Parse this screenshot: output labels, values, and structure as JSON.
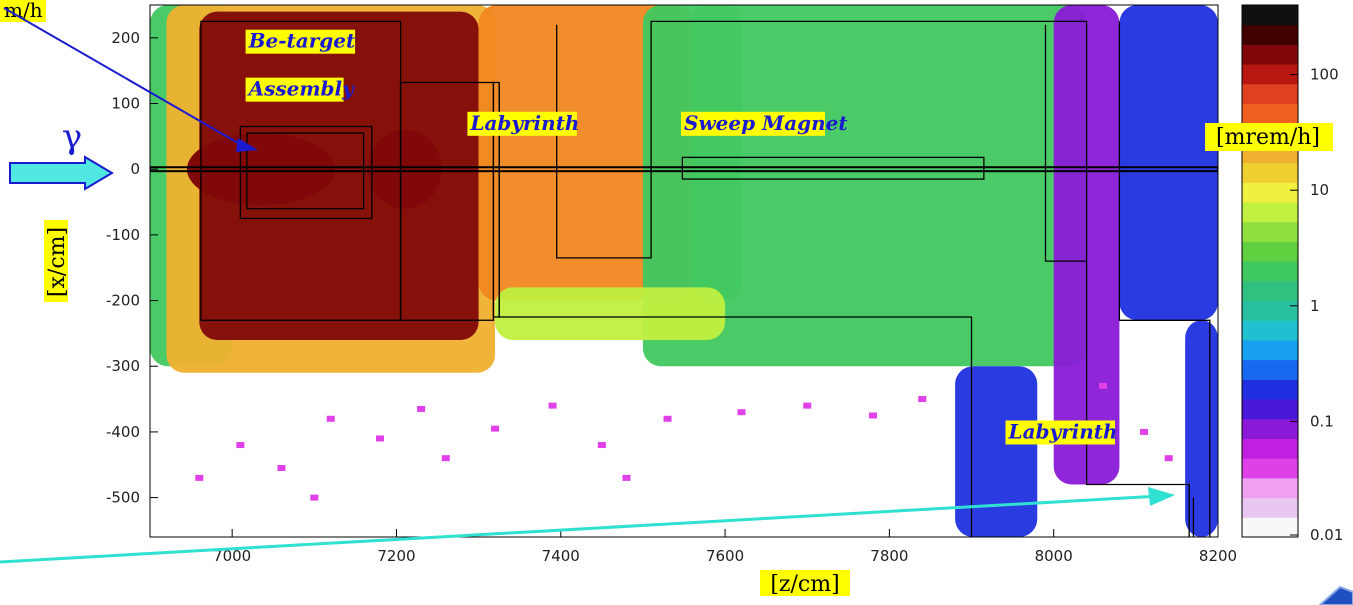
{
  "chart_data": {
    "type": "heatmap",
    "title": "",
    "xlabel": "[z/cm]",
    "ylabel": "[x/cm]",
    "xlim": [
      6900,
      8200
    ],
    "ylim": [
      -560,
      250
    ],
    "x_ticks": [
      7000,
      7200,
      7400,
      7600,
      7800,
      8000,
      8200
    ],
    "y_ticks": [
      200,
      100,
      0,
      -100,
      -200,
      -300,
      -400,
      -500
    ],
    "colorbar": {
      "label": "[mrem/h]",
      "scale": "log",
      "range": [
        0.01,
        400
      ],
      "ticks": [
        {
          "value": 100,
          "label": "100"
        },
        {
          "value": 10,
          "label": "10"
        },
        {
          "value": 1,
          "label": "1"
        },
        {
          "value": 0.1,
          "label": "0.1"
        },
        {
          "value": 0.01,
          "label": "0.01"
        }
      ],
      "colors": [
        "#f8f8f8",
        "#e8c8f0",
        "#f0a0f0",
        "#e040e8",
        "#c020e0",
        "#8a1ad8",
        "#4a18d8",
        "#2030e0",
        "#1868f0",
        "#18a0f0",
        "#20c0d0",
        "#28c0a0",
        "#30c080",
        "#40c860",
        "#60d040",
        "#90e040",
        "#c0f040",
        "#f0f040",
        "#f0d030",
        "#f0b030",
        "#f08820",
        "#f06020",
        "#e04020",
        "#b81810",
        "#800808",
        "#400000",
        "#101010"
      ]
    },
    "zones": [
      {
        "z": [
          6900,
          7000
        ],
        "x": [
          -300,
          250
        ],
        "dose": 2
      },
      {
        "z": [
          6920,
          7320
        ],
        "x": [
          -310,
          250
        ],
        "dose": 20
      },
      {
        "z": [
          6960,
          7300
        ],
        "x": [
          -260,
          240
        ],
        "dose": 150
      },
      {
        "z": [
          7300,
          7560
        ],
        "x": [
          -200,
          250
        ],
        "dose": 30
      },
      {
        "z": [
          7560,
          7620
        ],
        "x": [
          -200,
          250
        ],
        "dose": 3
      },
      {
        "z": [
          7500,
          8040
        ],
        "x": [
          -300,
          250
        ],
        "dose": 2
      },
      {
        "z": [
          7320,
          7600
        ],
        "x": [
          -260,
          -180
        ],
        "dose": 8
      },
      {
        "z": [
          7880,
          7980
        ],
        "x": [
          -560,
          -300
        ],
        "dose": 0.2
      },
      {
        "z": [
          8000,
          8080
        ],
        "x": [
          -480,
          250
        ],
        "dose": 0.08
      },
      {
        "z": [
          8080,
          8200
        ],
        "x": [
          -230,
          250
        ],
        "dose": 0.15
      },
      {
        "z": [
          8160,
          8200
        ],
        "x": [
          -560,
          -230
        ],
        "dose": 0.15
      }
    ],
    "hotspots": [
      {
        "z": 7070,
        "x": 0,
        "rz": 55,
        "rx": 14,
        "dose": 400
      },
      {
        "z": 7225,
        "x": 0,
        "rz": 22,
        "rx": 28,
        "dose": 400
      },
      {
        "z": 7035,
        "x": 0,
        "rz": 90,
        "rx": 55,
        "dose": 200
      },
      {
        "z": 7210,
        "x": 0,
        "rz": 45,
        "rx": 60,
        "dose": 200
      }
    ],
    "scatter_hits": [
      {
        "z": 7010,
        "x": -420
      },
      {
        "z": 7060,
        "x": -455
      },
      {
        "z": 7120,
        "x": -380
      },
      {
        "z": 7180,
        "x": -410
      },
      {
        "z": 7230,
        "x": -365
      },
      {
        "z": 7320,
        "x": -395
      },
      {
        "z": 7390,
        "x": -360
      },
      {
        "z": 7450,
        "x": -420
      },
      {
        "z": 7530,
        "x": -380
      },
      {
        "z": 7620,
        "x": -370
      },
      {
        "z": 7700,
        "x": -360
      },
      {
        "z": 7780,
        "x": -375
      },
      {
        "z": 7840,
        "x": -350
      },
      {
        "z": 6960,
        "x": -470
      },
      {
        "z": 7100,
        "x": -500
      },
      {
        "z": 7260,
        "x": -440
      },
      {
        "z": 7480,
        "x": -470
      },
      {
        "z": 8110,
        "x": -400
      },
      {
        "z": 8140,
        "x": -440
      },
      {
        "z": 8060,
        "x": -330
      }
    ],
    "geometry_outlines": [
      {
        "z": [
          6962,
          7205
        ],
        "x": [
          -230,
          225
        ]
      },
      {
        "z": [
          7205,
          7318
        ],
        "x": [
          -230,
          132
        ]
      },
      {
        "z": [
          7018,
          7160
        ],
        "x": [
          -60,
          55
        ]
      },
      {
        "z": [
          7010,
          7170
        ],
        "x": [
          -75,
          65
        ]
      },
      {
        "z": [
          7548,
          7915
        ],
        "x": [
          -15,
          18
        ]
      },
      {
        "z": [
          7318,
          7325
        ],
        "x": [
          -225,
          132
        ]
      }
    ],
    "geometry_paths": [
      [
        [
          7325,
          132
        ],
        [
          7325,
          -225
        ],
        [
          7900,
          -225
        ],
        [
          7900,
          -560
        ]
      ],
      [
        [
          7395,
          220
        ],
        [
          7395,
          -135
        ],
        [
          7510,
          -135
        ],
        [
          7510,
          225
        ],
        [
          8040,
          225
        ],
        [
          8040,
          -480
        ],
        [
          8165,
          -480
        ],
        [
          8165,
          -560
        ]
      ],
      [
        [
          7990,
          220
        ],
        [
          7990,
          -140
        ],
        [
          8040,
          -140
        ]
      ],
      [
        [
          8080,
          225
        ],
        [
          8080,
          -230
        ],
        [
          8190,
          -230
        ],
        [
          8190,
          -560
        ]
      ],
      [
        [
          8170,
          -500
        ],
        [
          8170,
          -560
        ]
      ]
    ],
    "beamline": {
      "z": [
        6900,
        8200
      ],
      "x": [
        -3,
        3
      ]
    },
    "annotations": [
      {
        "text": "Be-target",
        "z": 7020,
        "x": 185
      },
      {
        "text": "Assembly",
        "z": 7020,
        "x": 112
      },
      {
        "text": "Labyrinth",
        "z": 7290,
        "x": 60
      },
      {
        "text": "Sweep Magnet",
        "z": 7550,
        "x": 60
      },
      {
        "text": "Labyrinth",
        "z": 7945,
        "x": -410
      }
    ],
    "beam_symbol": "γ",
    "top_left_fragment": "m/h"
  }
}
